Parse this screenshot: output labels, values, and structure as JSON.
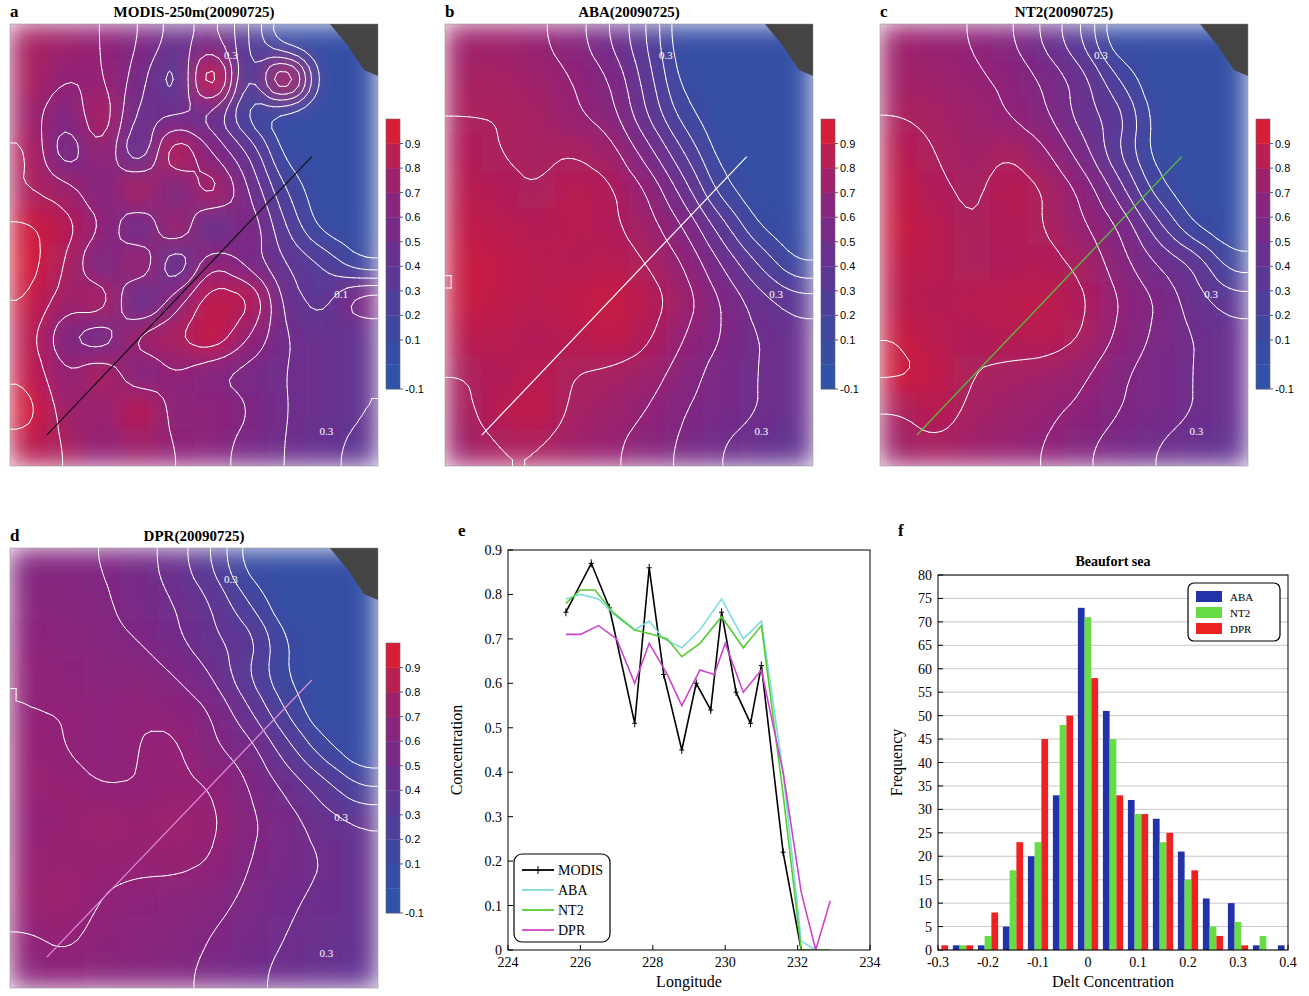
{
  "chart_data": [
    {
      "type": "heatmap",
      "label": "a",
      "title": "MODIS-250m(20090725)",
      "color": "#111111",
      "colorbar_range": [
        -0.1,
        1.0
      ],
      "colorbar_ticks": [
        -0.1,
        0.1,
        0.2,
        0.3,
        0.4,
        0.5,
        0.6,
        0.7,
        0.8,
        0.9
      ],
      "contour_labels": [
        "0.3",
        "0.1",
        "0.3"
      ],
      "cells": [
        [
          0.78,
          0.75,
          0.7,
          0.6,
          0.45,
          0.55,
          0.3,
          0.0,
          0.0,
          0.0
        ],
        [
          0.8,
          0.7,
          0.72,
          0.55,
          0.3,
          0.9,
          0.2,
          0.8,
          0.0,
          0.0
        ],
        [
          0.75,
          0.6,
          0.8,
          0.45,
          0.5,
          0.45,
          0.15,
          0.0,
          0.0,
          0.0
        ],
        [
          0.82,
          0.5,
          0.72,
          0.35,
          0.85,
          0.6,
          0.4,
          0.05,
          0.0,
          0.0
        ],
        [
          0.8,
          0.75,
          0.6,
          0.8,
          0.55,
          0.8,
          0.5,
          0.2,
          0.0,
          0.0
        ],
        [
          0.92,
          0.85,
          0.7,
          0.45,
          0.75,
          0.4,
          0.6,
          0.3,
          0.05,
          0.0
        ],
        [
          0.95,
          0.8,
          0.55,
          0.75,
          0.35,
          0.7,
          0.55,
          0.4,
          0.3,
          0.1
        ],
        [
          0.9,
          0.75,
          0.8,
          0.4,
          0.65,
          0.88,
          0.85,
          0.45,
          0.35,
          0.6
        ],
        [
          0.85,
          0.6,
          0.5,
          0.75,
          0.8,
          0.9,
          0.7,
          0.5,
          0.45,
          0.4
        ],
        [
          0.88,
          0.7,
          0.8,
          0.6,
          0.7,
          0.6,
          0.55,
          0.5,
          0.45,
          0.4
        ],
        [
          0.95,
          0.75,
          0.72,
          0.85,
          0.65,
          0.7,
          0.6,
          0.5,
          0.45,
          0.4
        ],
        [
          0.85,
          0.8,
          0.7,
          0.75,
          0.7,
          0.65,
          0.55,
          0.5,
          0.42,
          0.38
        ]
      ]
    },
    {
      "type": "heatmap",
      "label": "b",
      "title": "ABA(20090725)",
      "color": "#ffffff",
      "colorbar_range": [
        -0.1,
        1.0
      ],
      "colorbar_ticks": [
        -0.1,
        0.1,
        0.2,
        0.3,
        0.4,
        0.5,
        0.6,
        0.7,
        0.8,
        0.9
      ],
      "contour_labels": [
        "0.3",
        "0.3",
        "0.3"
      ],
      "cells": [
        [
          0.75,
          0.75,
          0.72,
          0.65,
          0.5,
          0.3,
          0.0,
          0.0,
          0.0,
          0.0
        ],
        [
          0.78,
          0.78,
          0.75,
          0.7,
          0.6,
          0.35,
          0.05,
          0.0,
          0.0,
          0.0
        ],
        [
          0.8,
          0.8,
          0.78,
          0.72,
          0.65,
          0.4,
          0.15,
          0.0,
          0.0,
          0.0
        ],
        [
          0.82,
          0.8,
          0.78,
          0.8,
          0.75,
          0.55,
          0.3,
          0.05,
          0.0,
          0.0
        ],
        [
          0.85,
          0.82,
          0.8,
          0.85,
          0.82,
          0.7,
          0.45,
          0.15,
          0.0,
          0.0
        ],
        [
          0.88,
          0.85,
          0.83,
          0.85,
          0.82,
          0.75,
          0.6,
          0.35,
          0.1,
          0.0
        ],
        [
          0.9,
          0.88,
          0.85,
          0.83,
          0.85,
          0.8,
          0.7,
          0.5,
          0.3,
          0.1
        ],
        [
          0.9,
          0.87,
          0.85,
          0.88,
          0.9,
          0.85,
          0.75,
          0.6,
          0.45,
          0.35
        ],
        [
          0.85,
          0.85,
          0.82,
          0.85,
          0.88,
          0.82,
          0.7,
          0.6,
          0.5,
          0.45
        ],
        [
          0.8,
          0.82,
          0.85,
          0.8,
          0.78,
          0.75,
          0.65,
          0.55,
          0.5,
          0.45
        ],
        [
          0.78,
          0.85,
          0.88,
          0.78,
          0.75,
          0.7,
          0.6,
          0.55,
          0.5,
          0.45
        ],
        [
          0.75,
          0.8,
          0.8,
          0.75,
          0.72,
          0.65,
          0.58,
          0.5,
          0.45,
          0.4
        ]
      ]
    },
    {
      "type": "heatmap",
      "label": "c",
      "title": "NT2(20090725)",
      "color": "#55cc33",
      "colorbar_range": [
        -0.1,
        1.0
      ],
      "colorbar_ticks": [
        -0.1,
        0.1,
        0.2,
        0.3,
        0.4,
        0.5,
        0.6,
        0.7,
        0.8,
        0.9
      ],
      "contour_labels": [
        "0.3",
        "0.3",
        "0.3"
      ],
      "cells": [
        [
          0.75,
          0.72,
          0.7,
          0.62,
          0.48,
          0.3,
          0.0,
          0.0,
          0.0,
          0.0
        ],
        [
          0.76,
          0.75,
          0.72,
          0.68,
          0.58,
          0.45,
          0.2,
          0.0,
          0.0,
          0.0
        ],
        [
          0.8,
          0.78,
          0.75,
          0.7,
          0.62,
          0.45,
          0.35,
          0.05,
          0.0,
          0.0
        ],
        [
          0.85,
          0.8,
          0.75,
          0.8,
          0.72,
          0.55,
          0.3,
          0.05,
          0.0,
          0.0
        ],
        [
          0.88,
          0.82,
          0.78,
          0.85,
          0.8,
          0.68,
          0.45,
          0.15,
          0.0,
          0.0
        ],
        [
          0.9,
          0.85,
          0.8,
          0.83,
          0.8,
          0.72,
          0.6,
          0.35,
          0.1,
          0.0
        ],
        [
          0.88,
          0.85,
          0.8,
          0.82,
          0.83,
          0.78,
          0.65,
          0.5,
          0.4,
          0.15
        ],
        [
          0.85,
          0.83,
          0.85,
          0.86,
          0.86,
          0.82,
          0.7,
          0.6,
          0.45,
          0.35
        ],
        [
          0.9,
          0.85,
          0.82,
          0.84,
          0.85,
          0.8,
          0.68,
          0.58,
          0.5,
          0.45
        ],
        [
          0.92,
          0.88,
          0.8,
          0.78,
          0.76,
          0.72,
          0.62,
          0.55,
          0.5,
          0.45
        ],
        [
          0.8,
          0.85,
          0.78,
          0.75,
          0.72,
          0.68,
          0.6,
          0.55,
          0.5,
          0.45
        ],
        [
          0.75,
          0.78,
          0.75,
          0.72,
          0.7,
          0.62,
          0.55,
          0.5,
          0.45,
          0.4
        ]
      ]
    },
    {
      "type": "heatmap",
      "label": "d",
      "title": "DPR(20090725)",
      "color": "#e090d8",
      "colorbar_range": [
        -0.1,
        1.0
      ],
      "colorbar_ticks": [
        -0.1,
        0.1,
        0.2,
        0.3,
        0.4,
        0.5,
        0.6,
        0.7,
        0.8,
        0.9
      ],
      "contour_labels": [
        "0.3",
        "0.3",
        "0.3"
      ],
      "cells": [
        [
          0.62,
          0.62,
          0.6,
          0.55,
          0.45,
          0.3,
          0.05,
          0.0,
          0.0,
          0.0
        ],
        [
          0.65,
          0.64,
          0.62,
          0.55,
          0.5,
          0.4,
          0.2,
          0.0,
          0.0,
          0.0
        ],
        [
          0.68,
          0.66,
          0.63,
          0.6,
          0.52,
          0.42,
          0.35,
          0.1,
          0.0,
          0.0
        ],
        [
          0.7,
          0.68,
          0.65,
          0.66,
          0.6,
          0.5,
          0.3,
          0.1,
          0.0,
          0.0
        ],
        [
          0.7,
          0.7,
          0.68,
          0.7,
          0.68,
          0.6,
          0.42,
          0.2,
          0.0,
          0.0
        ],
        [
          0.72,
          0.7,
          0.68,
          0.7,
          0.72,
          0.62,
          0.55,
          0.35,
          0.15,
          0.0
        ],
        [
          0.72,
          0.72,
          0.7,
          0.7,
          0.72,
          0.7,
          0.6,
          0.48,
          0.35,
          0.2
        ],
        [
          0.7,
          0.72,
          0.74,
          0.73,
          0.74,
          0.72,
          0.62,
          0.55,
          0.45,
          0.4
        ],
        [
          0.72,
          0.73,
          0.72,
          0.72,
          0.73,
          0.7,
          0.6,
          0.55,
          0.5,
          0.42
        ],
        [
          0.73,
          0.74,
          0.7,
          0.68,
          0.66,
          0.64,
          0.58,
          0.52,
          0.48,
          0.42
        ],
        [
          0.7,
          0.72,
          0.68,
          0.66,
          0.64,
          0.6,
          0.55,
          0.5,
          0.46,
          0.42
        ],
        [
          0.66,
          0.68,
          0.66,
          0.64,
          0.62,
          0.58,
          0.52,
          0.48,
          0.44,
          0.4
        ]
      ]
    },
    {
      "type": "line",
      "label": "e",
      "xlabel": "Longitude",
      "ylabel": "Concentration",
      "xlim": [
        224,
        234
      ],
      "xticks": [
        224,
        226,
        228,
        230,
        232,
        234
      ],
      "ylim": [
        0,
        0.9
      ],
      "yticks": [
        0,
        0.1,
        0.2,
        0.3,
        0.4,
        0.5,
        0.6,
        0.7,
        0.8,
        0.9
      ],
      "legend": "lower left",
      "grid": false,
      "series": [
        {
          "name": "MODIS",
          "color": "#000000",
          "marker": "plus",
          "x": [
            225.6,
            226.3,
            226.8,
            227.5,
            227.9,
            228.3,
            228.8,
            229.2,
            229.6,
            229.9,
            230.3,
            230.7,
            231.0,
            231.6,
            232.1,
            232.5
          ],
          "values": [
            0.76,
            0.87,
            0.77,
            0.51,
            0.86,
            0.62,
            0.45,
            0.6,
            0.54,
            0.76,
            0.58,
            0.51,
            0.64,
            0.22,
            0.0,
            0.0
          ]
        },
        {
          "name": "ABA",
          "color": "#7fdcdc",
          "marker": "none",
          "x": [
            225.6,
            226.0,
            226.5,
            227.0,
            227.5,
            227.9,
            228.3,
            228.8,
            229.3,
            229.9,
            230.5,
            231.0,
            231.6,
            232.1,
            232.5
          ],
          "values": [
            0.79,
            0.8,
            0.79,
            0.75,
            0.72,
            0.74,
            0.7,
            0.68,
            0.72,
            0.79,
            0.7,
            0.74,
            0.4,
            0.02,
            0.0
          ]
        },
        {
          "name": "NT2",
          "color": "#55cc33",
          "marker": "none",
          "x": [
            225.6,
            226.0,
            226.4,
            226.9,
            227.5,
            228.0,
            228.4,
            228.8,
            229.3,
            229.9,
            230.5,
            231.0,
            231.6,
            232.1,
            232.5,
            232.9
          ],
          "values": [
            0.78,
            0.81,
            0.81,
            0.76,
            0.72,
            0.71,
            0.7,
            0.66,
            0.69,
            0.75,
            0.68,
            0.73,
            0.35,
            0.0,
            0.0,
            0.0
          ]
        },
        {
          "name": "DPR",
          "color": "#cc44cc",
          "marker": "none",
          "x": [
            225.6,
            226.0,
            226.5,
            227.0,
            227.5,
            227.9,
            228.4,
            228.8,
            229.3,
            229.7,
            230.0,
            230.5,
            231.0,
            231.6,
            232.1,
            232.5,
            232.9
          ],
          "values": [
            0.71,
            0.71,
            0.73,
            0.7,
            0.6,
            0.69,
            0.62,
            0.55,
            0.63,
            0.62,
            0.69,
            0.58,
            0.63,
            0.4,
            0.13,
            0.0,
            0.11
          ]
        }
      ]
    },
    {
      "type": "bar",
      "label": "f",
      "title": "Beaufort sea",
      "xlabel": "Delt Concentration",
      "ylabel": "Frequency",
      "xlim": [
        -0.3,
        0.4
      ],
      "xticks": [
        -0.3,
        -0.2,
        -0.1,
        0,
        0.1,
        0.2,
        0.3,
        0.4
      ],
      "ylim": [
        0,
        80
      ],
      "yticks": [
        0,
        5,
        10,
        15,
        20,
        25,
        30,
        35,
        40,
        45,
        50,
        55,
        60,
        65,
        70,
        75,
        80
      ],
      "legend": "upper right",
      "grid": true,
      "x": [
        -0.3,
        -0.25,
        -0.2,
        -0.15,
        -0.1,
        -0.05,
        0,
        0.05,
        0.1,
        0.15,
        0.2,
        0.25,
        0.3,
        0.35,
        0.4
      ],
      "series": [
        {
          "name": "ABA",
          "color": "#2233aa",
          "values": [
            0,
            1,
            1,
            5,
            20,
            33,
            73,
            51,
            32,
            28,
            21,
            11,
            10,
            1,
            1
          ]
        },
        {
          "name": "NT2",
          "color": "#66dd44",
          "values": [
            0,
            1,
            3,
            17,
            23,
            48,
            71,
            45,
            29,
            23,
            15,
            5,
            6,
            3,
            0
          ]
        },
        {
          "name": "DPR",
          "color": "#ee2222",
          "values": [
            1,
            1,
            8,
            23,
            45,
            50,
            58,
            33,
            29,
            25,
            17,
            3,
            1,
            0,
            0
          ]
        }
      ]
    }
  ]
}
